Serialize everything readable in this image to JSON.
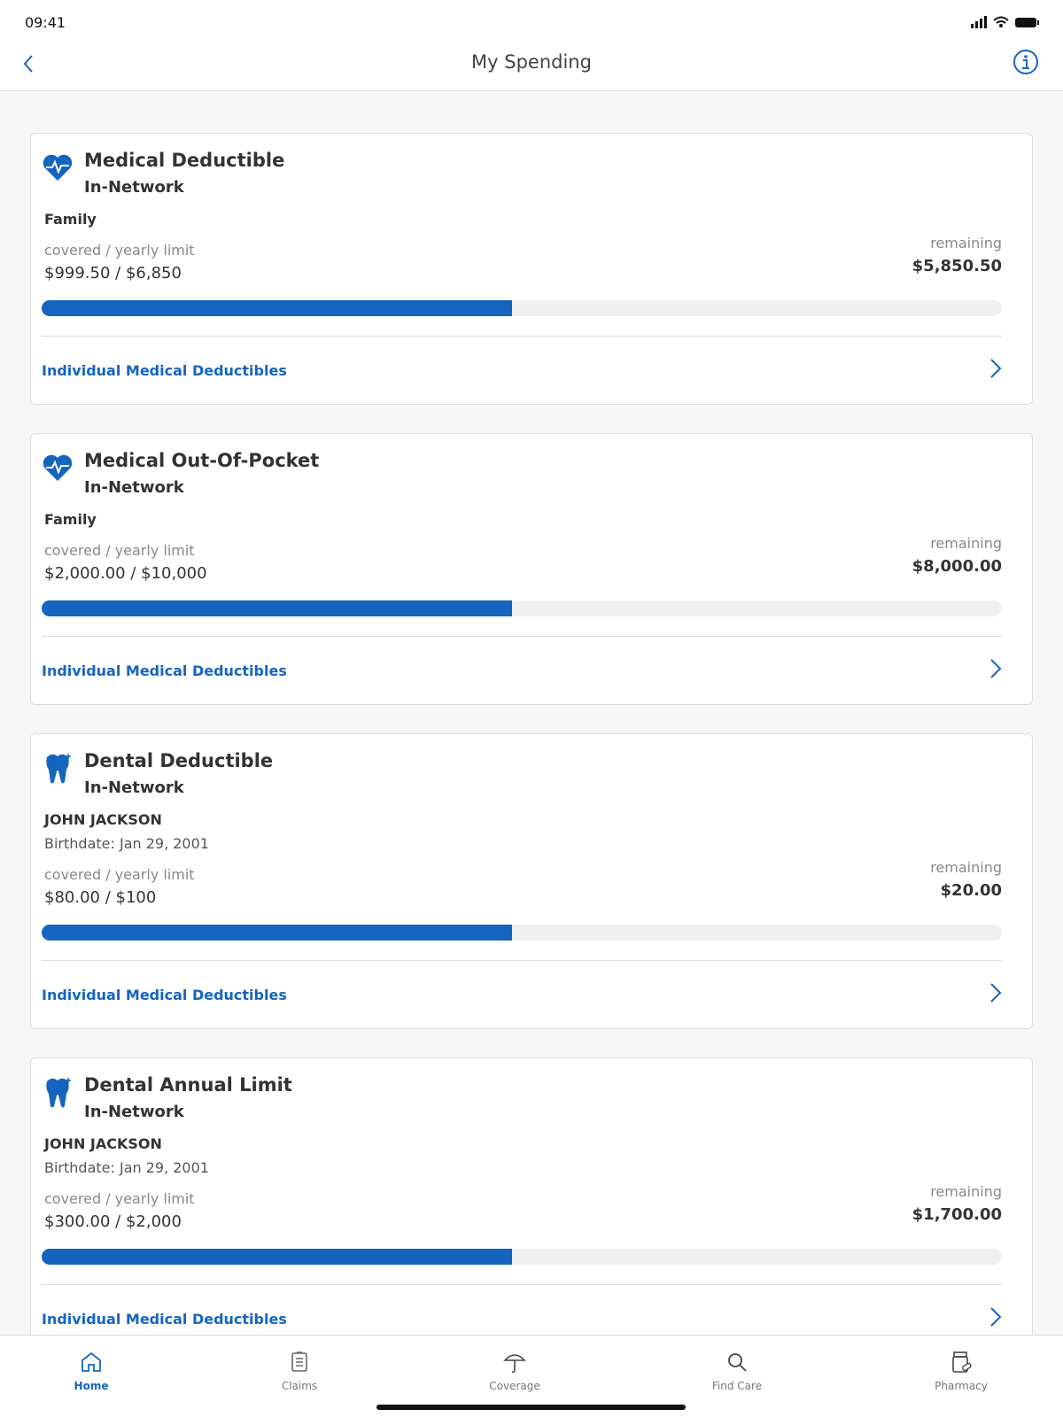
{
  "status_bar": {
    "time": "09:41"
  },
  "header": {
    "title": "My Spending"
  },
  "cards": [
    {
      "title": "Medical Deductible",
      "network": "In-Network",
      "member": "Family",
      "limit_label": "covered / yearly limit",
      "amount": "$999.50 / $6,850",
      "remaining_label": "remaining",
      "remaining": "$5,850.50",
      "link": "Individual Medical Deductibles"
    },
    {
      "title": "Medical Out-Of-Pocket",
      "network": "In-Network",
      "member": "Family",
      "limit_label": "covered / yearly limit",
      "amount": "$2,000.00 / $10,000",
      "remaining_label": "remaining",
      "remaining": "$8,000.00",
      "link": "Individual Medical Deductibles"
    },
    {
      "title": "Dental Deductible",
      "network": "In-Network",
      "member": "JOHN JACKSON",
      "birthdate": "Birthdate: Jan 29, 2001",
      "limit_label": "covered / yearly limit",
      "amount": "$80.00 / $100",
      "remaining_label": "remaining",
      "remaining": "$20.00",
      "link": "Individual Medical Deductibles"
    },
    {
      "title": "Dental Annual Limit",
      "network": "In-Network",
      "member": "JOHN JACKSON",
      "birthdate": "Birthdate: Jan 29, 2001",
      "limit_label": "covered / yearly limit",
      "amount": "$300.00 / $2,000",
      "remaining_label": "remaining",
      "remaining": "$1,700.00",
      "link": "Individual Medical Deductibles"
    }
  ],
  "tab_bar": {
    "items": [
      "Home",
      "Claims",
      "Coverage",
      "Find Care",
      "Pharmacy"
    ]
  }
}
